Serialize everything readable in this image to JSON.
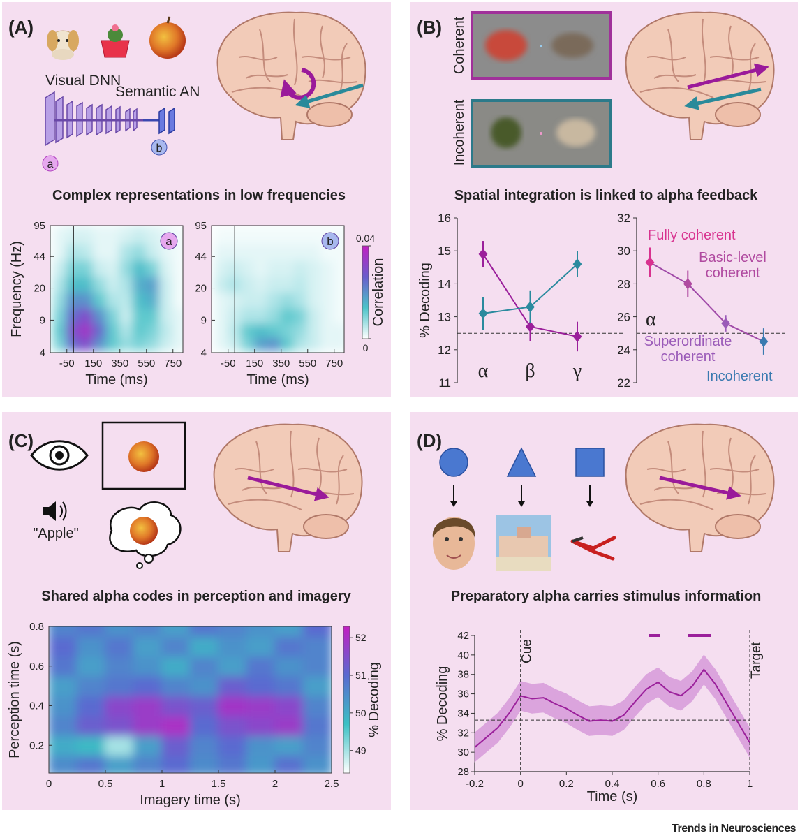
{
  "panels": [
    {
      "letter": "(A)",
      "title": "Complex representations in low frequencies",
      "labels": [
        "Visual DNN",
        "Semantic AN",
        "a",
        "b"
      ]
    },
    {
      "letter": "(B)",
      "title": "Spatial integration is linked to alpha feedback",
      "labels": [
        "Coherent",
        "Incoherent"
      ]
    },
    {
      "letter": "(C)",
      "title": "Shared alpha codes in perception and imagery",
      "labels": [
        "\"Apple\""
      ]
    },
    {
      "letter": "(D)",
      "title": "Preparatory alpha carries stimulus information"
    }
  ],
  "chart_data": [
    {
      "type": "heatmap",
      "badge": "a",
      "xlabel": "Time (ms)",
      "ylabel": "Frequency (Hz)",
      "x": [
        -100,
        0,
        100,
        200,
        300,
        400,
        500,
        600,
        700,
        800
      ],
      "y": [
        5,
        7,
        10,
        15,
        22,
        33,
        50,
        75
      ],
      "z": [
        [
          0.01,
          0.025,
          0.03,
          0.02,
          0.012,
          0.008,
          0.01,
          0.008,
          0.004,
          0.002
        ],
        [
          0.012,
          0.03,
          0.035,
          0.025,
          0.012,
          0.006,
          0.012,
          0.01,
          0.005,
          0.002
        ],
        [
          0.01,
          0.025,
          0.03,
          0.02,
          0.01,
          0.004,
          0.012,
          0.012,
          0.004,
          0.002
        ],
        [
          0.008,
          0.02,
          0.02,
          0.012,
          0.006,
          0.005,
          0.014,
          0.016,
          0.004,
          0.001
        ],
        [
          0.006,
          0.014,
          0.014,
          0.008,
          0.004,
          0.006,
          0.016,
          0.018,
          0.004,
          0.001
        ],
        [
          0.004,
          0.01,
          0.01,
          0.004,
          0.003,
          0.008,
          0.014,
          0.01,
          0.003,
          0.001
        ],
        [
          0.002,
          0.006,
          0.005,
          0.002,
          0.002,
          0.006,
          0.008,
          0.004,
          0.002,
          0.001
        ],
        [
          0.002,
          0.003,
          0.003,
          0.002,
          0.002,
          0.003,
          0.004,
          0.003,
          0.002,
          0.001
        ]
      ],
      "xlim": [
        -175,
        825
      ],
      "xticks": [
        -50,
        150,
        350,
        550,
        750
      ],
      "ylim": [
        4,
        95
      ],
      "yticks": [
        4,
        9,
        20,
        44,
        95
      ],
      "yscale": "log",
      "vline": 0,
      "clim": [
        0,
        0.04
      ],
      "colormap": [
        "#ffffff",
        "#4cc3c9",
        "#6a5ccc",
        "#c21fc2"
      ],
      "badge_color": "#e6a8ee"
    },
    {
      "type": "heatmap",
      "badge": "b",
      "xlabel": "Time (ms)",
      "x": [
        -100,
        0,
        100,
        200,
        300,
        400,
        500,
        600,
        700,
        800
      ],
      "y": [
        5,
        7,
        10,
        15,
        22,
        33,
        50,
        75
      ],
      "z": [
        [
          0.002,
          0.004,
          0.01,
          0.018,
          0.02,
          0.012,
          0.006,
          0.004,
          0.002,
          0.002
        ],
        [
          0.002,
          0.005,
          0.012,
          0.014,
          0.012,
          0.01,
          0.008,
          0.004,
          0.002,
          0.002
        ],
        [
          0.002,
          0.004,
          0.006,
          0.006,
          0.008,
          0.012,
          0.01,
          0.004,
          0.002,
          0.001
        ],
        [
          0.002,
          0.003,
          0.004,
          0.004,
          0.006,
          0.008,
          0.006,
          0.003,
          0.002,
          0.001
        ],
        [
          0.004,
          0.006,
          0.004,
          0.003,
          0.004,
          0.004,
          0.005,
          0.003,
          0.002,
          0.001
        ],
        [
          0.003,
          0.004,
          0.003,
          0.002,
          0.003,
          0.003,
          0.004,
          0.003,
          0.002,
          0.001
        ],
        [
          0.002,
          0.002,
          0.002,
          0.002,
          0.002,
          0.002,
          0.002,
          0.002,
          0.001,
          0.001
        ],
        [
          0.001,
          0.001,
          0.001,
          0.001,
          0.001,
          0.001,
          0.001,
          0.001,
          0.001,
          0.001
        ]
      ],
      "xlim": [
        -175,
        825
      ],
      "xticks": [
        -50,
        150,
        350,
        550,
        750
      ],
      "ylim": [
        4,
        95
      ],
      "yticks": [
        4,
        9,
        20,
        44,
        95
      ],
      "yscale": "log",
      "vline": 0,
      "clim": [
        0,
        0.04
      ],
      "colormap": [
        "#ffffff",
        "#4cc3c9",
        "#6a5ccc",
        "#c21fc2"
      ],
      "badge_color": "#a8b8ee",
      "colorbar": {
        "label": "Correlation",
        "ticks": [
          0,
          0.04
        ]
      }
    },
    {
      "type": "errorbar-line",
      "categories": [
        "α",
        "β",
        "γ"
      ],
      "series": [
        {
          "color": "#9b1f9b",
          "values": [
            14.9,
            12.7,
            12.4
          ],
          "errors": [
            0.4,
            0.45,
            0.45
          ]
        },
        {
          "color": "#2a8a9e",
          "values": [
            13.1,
            13.3,
            14.6
          ],
          "errors": [
            0.5,
            0.5,
            0.4
          ]
        }
      ],
      "ylim": [
        11,
        16
      ],
      "yticks": [
        11,
        12,
        13,
        14,
        15,
        16
      ],
      "ylabel": "% Decoding",
      "chance": 12.5
    },
    {
      "type": "errorbar-line",
      "categories": [
        "Fully coherent",
        "Basic-level coherent",
        "Superordinate coherent",
        "Incoherent"
      ],
      "series": [
        {
          "color": "#a04aa8",
          "colors": [
            "#d8328f",
            "#b04aa0",
            "#9a5ab8",
            "#3a7ab0"
          ],
          "values": [
            29.3,
            28.0,
            25.6,
            24.5
          ],
          "errors": [
            0.9,
            0.8,
            0.5,
            0.8
          ]
        }
      ],
      "ylim": [
        22,
        32
      ],
      "yticks": [
        22,
        24,
        26,
        28,
        30,
        32
      ],
      "chance": 25,
      "annotation": "α"
    },
    {
      "type": "heatmap",
      "xlabel": "Imagery time (s)",
      "ylabel": "Perception time (s)",
      "x": [
        0.125,
        0.375,
        0.625,
        0.875,
        1.125,
        1.375,
        1.625,
        1.875,
        2.125,
        2.375
      ],
      "y": [
        0.1,
        0.2,
        0.3,
        0.4,
        0.5,
        0.6,
        0.7,
        0.8
      ],
      "z": [
        [
          50.5,
          50.8,
          50.2,
          50.6,
          51.0,
          50.5,
          50.8,
          50.3,
          50.9,
          50.4
        ],
        [
          50.0,
          49.8,
          49.0,
          50.2,
          51.2,
          50.6,
          51.0,
          50.4,
          50.2,
          50.6
        ],
        [
          50.6,
          51.2,
          51.4,
          51.8,
          52.0,
          51.0,
          51.4,
          51.6,
          51.8,
          50.8
        ],
        [
          50.4,
          51.0,
          51.6,
          51.8,
          51.4,
          51.2,
          51.9,
          51.8,
          51.6,
          50.6
        ],
        [
          50.2,
          50.6,
          50.8,
          51.0,
          50.6,
          50.4,
          51.2,
          51.0,
          50.8,
          50.2
        ],
        [
          50.8,
          50.2,
          50.6,
          50.4,
          50.0,
          50.6,
          50.2,
          50.8,
          50.4,
          50.6
        ],
        [
          51.0,
          50.4,
          50.8,
          50.2,
          50.6,
          50.0,
          50.4,
          50.2,
          50.8,
          50.6
        ],
        [
          50.6,
          50.8,
          50.4,
          50.6,
          50.2,
          50.8,
          50.6,
          50.4,
          50.2,
          51.0
        ]
      ],
      "xlim": [
        0,
        2.5
      ],
      "xticks": [
        0,
        0.5,
        1,
        1.5,
        2,
        2.5
      ],
      "ylim": [
        0.06,
        0.8
      ],
      "yticks": [
        0.2,
        0.4,
        0.6,
        0.8
      ],
      "clim": [
        48.4,
        52.3
      ],
      "colormap": [
        "#ffffff",
        "#3cc0c4",
        "#5a6ad0",
        "#c21fc2"
      ],
      "colorbar": {
        "label": "% Decoding",
        "ticks": [
          49,
          50,
          51,
          52
        ]
      }
    },
    {
      "type": "line-band",
      "xlabel": "Time (s)",
      "ylabel": "% Decoding",
      "x": [
        -0.2,
        -0.15,
        -0.1,
        -0.05,
        0,
        0.05,
        0.1,
        0.15,
        0.2,
        0.25,
        0.3,
        0.35,
        0.4,
        0.45,
        0.5,
        0.55,
        0.6,
        0.65,
        0.7,
        0.75,
        0.8,
        0.85,
        0.9,
        0.95,
        1
      ],
      "values": [
        30.5,
        31.5,
        32.5,
        34,
        35.8,
        35.5,
        35.6,
        35,
        34.5,
        33.8,
        33.2,
        33.3,
        33.2,
        33.8,
        35.2,
        36.5,
        37.2,
        36.2,
        35.8,
        36.8,
        38.5,
        37,
        35,
        33,
        31
      ],
      "errors": [
        1.5,
        1.5,
        1.5,
        1.5,
        1.5,
        1.5,
        1.5,
        1.5,
        1.5,
        1.5,
        1.5,
        1.5,
        1.5,
        1.5,
        1.5,
        1.5,
        1.5,
        1.5,
        1.5,
        1.5,
        1.5,
        1.5,
        1.5,
        1.5,
        1.5
      ],
      "color": "#9b209b",
      "band_color": "#dba4dd",
      "xlim": [
        -0.2,
        1
      ],
      "xticks": [
        -0.2,
        0,
        0.2,
        0.4,
        0.6,
        0.8,
        1
      ],
      "ylim": [
        28,
        42
      ],
      "yticks": [
        28,
        30,
        32,
        34,
        36,
        38,
        40,
        42
      ],
      "chance": 33.3,
      "markers": [
        {
          "x": 0,
          "label": "Cue"
        },
        {
          "x": 1,
          "label": "Target"
        }
      ],
      "significant": [
        [
          0.56,
          0.61
        ],
        [
          0.73,
          0.83
        ]
      ]
    }
  ],
  "footer": "Trends in Neurosciences"
}
